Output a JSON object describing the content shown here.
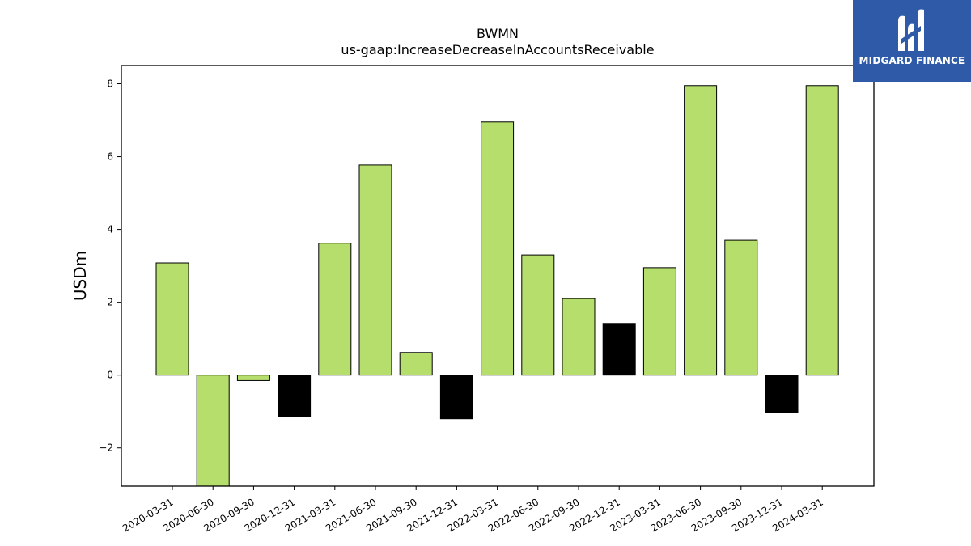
{
  "title": "BWMN",
  "subtitle": "us-gaap:IncreaseDecreaseInAccountsReceivable",
  "logo": {
    "text": "MIDGARD FINANCE",
    "background": "#2f5aa8",
    "icon": "midgard-logo-icon"
  },
  "colors": {
    "positive": "#b5de6c",
    "highlight": "#000000",
    "edge": "#000000"
  },
  "chart_data": {
    "type": "bar",
    "categories": [
      "2020-03-31",
      "2020-06-30",
      "2020-09-30",
      "2020-12-31",
      "2021-03-31",
      "2021-06-30",
      "2021-09-30",
      "2021-12-31",
      "2022-03-31",
      "2022-06-30",
      "2022-09-30",
      "2022-12-31",
      "2023-03-31",
      "2023-06-30",
      "2023-09-30",
      "2023-12-31",
      "2024-03-31"
    ],
    "values": [
      3.08,
      -3.1,
      -0.15,
      -1.15,
      3.62,
      5.77,
      0.62,
      -1.2,
      6.95,
      3.3,
      2.1,
      1.42,
      2.95,
      7.95,
      3.7,
      -1.03,
      7.95
    ],
    "bar_colors": [
      "#b5de6c",
      "#b5de6c",
      "#b5de6c",
      "#000000",
      "#b5de6c",
      "#b5de6c",
      "#b5de6c",
      "#000000",
      "#b5de6c",
      "#b5de6c",
      "#b5de6c",
      "#000000",
      "#b5de6c",
      "#b5de6c",
      "#b5de6c",
      "#000000",
      "#b5de6c"
    ],
    "ylabel": "USDm",
    "xlabel": "",
    "ylim": [
      -3.05,
      8.5
    ],
    "yticks": [
      -2,
      0,
      2,
      4,
      6,
      8
    ],
    "ytick_labels": [
      "−2",
      "0",
      "2",
      "4",
      "6",
      "8"
    ],
    "grid": false,
    "legend": false
  }
}
